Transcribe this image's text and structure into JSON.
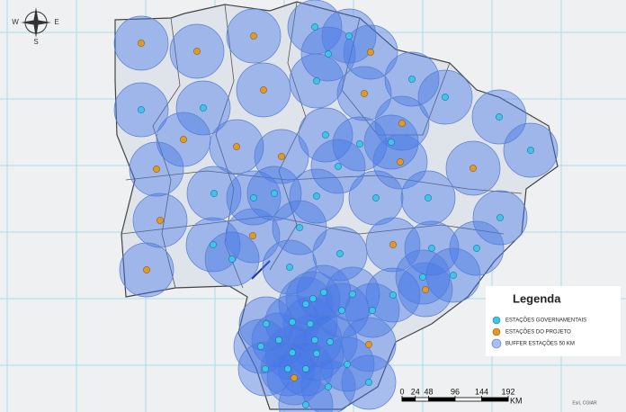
{
  "compass": {
    "west": "W",
    "east": "E",
    "south": "S"
  },
  "legend": {
    "title": "Legenda",
    "items": [
      "ESTAÇÕES GOVERNAMENTAIS",
      "ESTAÇÕES DO PROJETO",
      "BUFFER ESTAÇÕES 50 KM"
    ]
  },
  "scale_bar": {
    "ticks": [
      0,
      24,
      48,
      96,
      144,
      192
    ],
    "unit": "KM"
  },
  "credit": "Esri, CGIAR"
}
